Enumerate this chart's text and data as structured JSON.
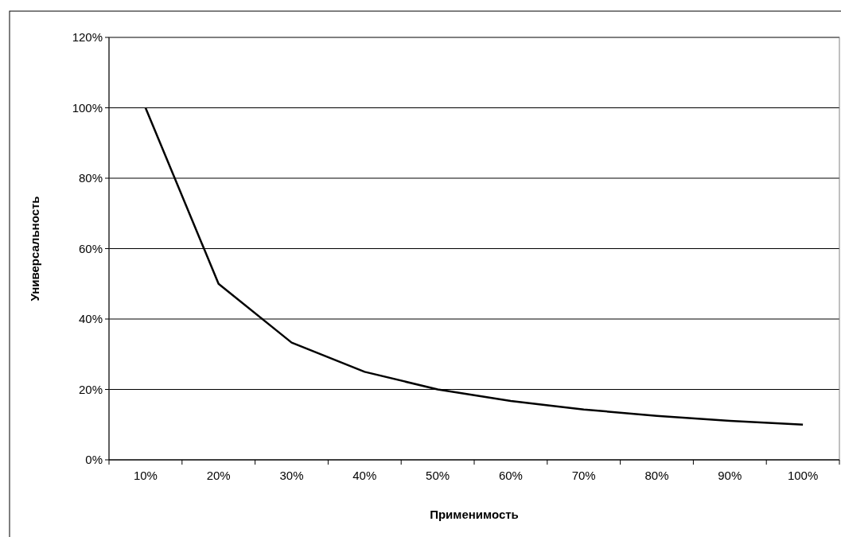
{
  "chart_data": {
    "type": "line",
    "xlabel": "Применимость",
    "ylabel": "Универсальность",
    "categories": [
      "10%",
      "20%",
      "30%",
      "40%",
      "50%",
      "60%",
      "70%",
      "80%",
      "90%",
      "100%"
    ],
    "series": [
      {
        "color": "#000000",
        "values": [
          100,
          50,
          33.3,
          25,
          20,
          16.7,
          14.3,
          12.5,
          11.1,
          10
        ]
      }
    ],
    "ylim": [
      0,
      120
    ],
    "yticks": [
      {
        "value": 0,
        "label": "0%"
      },
      {
        "value": 20,
        "label": "20%"
      },
      {
        "value": 40,
        "label": "40%"
      },
      {
        "value": 60,
        "label": "60%"
      },
      {
        "value": 80,
        "label": "80%"
      },
      {
        "value": 100,
        "label": "100%"
      },
      {
        "value": 120,
        "label": "120%"
      }
    ],
    "grid": "y",
    "marker": "none",
    "line_style": "solid"
  }
}
